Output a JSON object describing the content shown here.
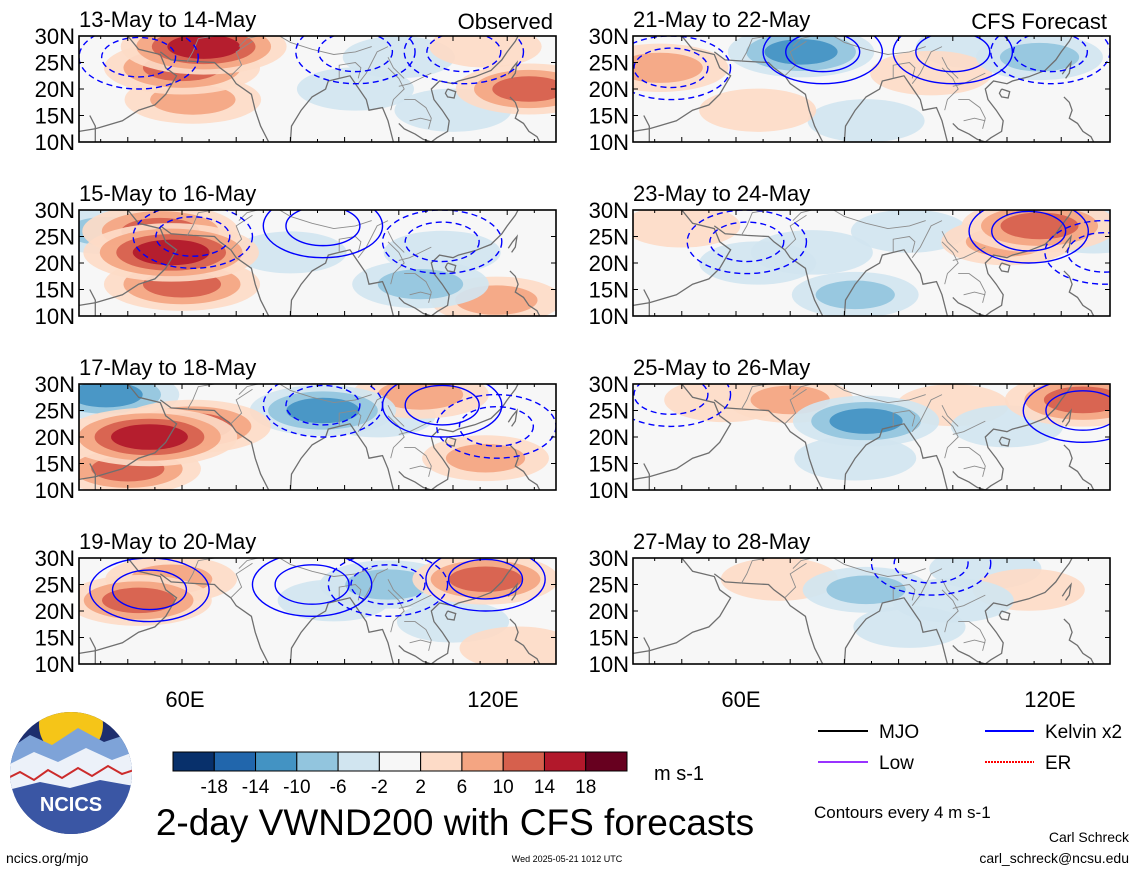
{
  "figure": {
    "title": "2-day VWND200 with CFS forecasts",
    "units": "m s-1",
    "contour_note": "Contours every 4 m s-1",
    "source": "ncics.org/mjo",
    "timestamp": "Wed 2025-05-21 1012 UTC",
    "author": "Carl Schreck",
    "email": "carl_schreck@ncsu.edu",
    "logo_text": "NCICS"
  },
  "colors": {
    "scale": [
      "#08306b",
      "#2166ac",
      "#4393c3",
      "#92c5de",
      "#d1e5f0",
      "#f7f7f7",
      "#fddbc7",
      "#f4a582",
      "#d6604d",
      "#b2182b",
      "#67001f"
    ],
    "land_outline": "#6f6f6f",
    "kelvin": "#0000ff"
  },
  "chart_data": {
    "type": "heatmap",
    "variable": "VWND200",
    "columns": [
      "Observed",
      "CFS Forecast"
    ],
    "lat_ticks": [
      "30N",
      "25N",
      "20N",
      "15N",
      "10N"
    ],
    "lon_ticks": [
      "60E",
      "120E"
    ],
    "lat_range": [
      10,
      30
    ],
    "colorbar": {
      "tick_labels": [
        "-18",
        "-14",
        "-10",
        "-6",
        "-2",
        "2",
        "6",
        "10",
        "14",
        "18"
      ],
      "bounds": [
        -18,
        -14,
        -10,
        -6,
        -2,
        2,
        6,
        10,
        14,
        18
      ],
      "units": "m s-1"
    },
    "legend": [
      {
        "label": "MJO",
        "color": "#000000",
        "style": "solid"
      },
      {
        "label": "Kelvin x2",
        "color": "#0000ff",
        "style": "solid"
      },
      {
        "label": "Low",
        "color": "#9933ff",
        "style": "solid"
      },
      {
        "label": "ER",
        "color": "#ff0000",
        "style": "dotted"
      }
    ],
    "panels": [
      {
        "period": "13-May to 14-May",
        "group": "Observed",
        "blobs": [
          {
            "lon": 60,
            "lat": 24,
            "v": 12
          },
          {
            "lon": 62,
            "lat": 18,
            "v": 8
          },
          {
            "lon": 64,
            "lat": 28,
            "v": 14
          },
          {
            "lon": 124,
            "lat": 20,
            "v": 10
          },
          {
            "lon": 92,
            "lat": 20,
            "v": -4
          },
          {
            "lon": 110,
            "lat": 16,
            "v": -4
          },
          {
            "lon": 100,
            "lat": 26,
            "v": -3
          },
          {
            "lon": 116,
            "lat": 28,
            "v": 3
          }
        ],
        "contours": [
          {
            "lon": 92,
            "lat": 27,
            "kind": "neg"
          },
          {
            "lon": 112,
            "lat": 27,
            "kind": "neg"
          },
          {
            "lon": 52,
            "lat": 26,
            "kind": "neg"
          }
        ]
      },
      {
        "period": "15-May to 16-May",
        "group": "Observed",
        "blobs": [
          {
            "lon": 58,
            "lat": 22,
            "v": 16
          },
          {
            "lon": 60,
            "lat": 16,
            "v": 12
          },
          {
            "lon": 56,
            "lat": 26,
            "v": 12
          },
          {
            "lon": 118,
            "lat": 13,
            "v": 7
          },
          {
            "lon": 104,
            "lat": 16,
            "v": -8
          },
          {
            "lon": 108,
            "lat": 22,
            "v": -4
          },
          {
            "lon": 80,
            "lat": 22,
            "v": -3
          },
          {
            "lon": 46,
            "lat": 26,
            "v": -6
          }
        ],
        "contours": [
          {
            "lon": 86,
            "lat": 27,
            "kind": "pos"
          },
          {
            "lon": 108,
            "lat": 24,
            "kind": "neg"
          },
          {
            "lon": 62,
            "lat": 25,
            "kind": "neg"
          }
        ]
      },
      {
        "period": "17-May to 18-May",
        "group": "Observed",
        "blobs": [
          {
            "lon": 54,
            "lat": 20,
            "v": 16
          },
          {
            "lon": 62,
            "lat": 22,
            "v": 12
          },
          {
            "lon": 50,
            "lat": 14,
            "v": 10
          },
          {
            "lon": 86,
            "lat": 25,
            "v": -10
          },
          {
            "lon": 104,
            "lat": 28,
            "v": 8
          },
          {
            "lon": 116,
            "lat": 16,
            "v": 6
          },
          {
            "lon": 96,
            "lat": 24,
            "v": -4
          },
          {
            "lon": 46,
            "lat": 28,
            "v": -10
          }
        ],
        "contours": [
          {
            "lon": 86,
            "lat": 26,
            "kind": "neg"
          },
          {
            "lon": 108,
            "lat": 26,
            "kind": "pos"
          },
          {
            "lon": 118,
            "lat": 22,
            "kind": "neg"
          }
        ]
      },
      {
        "period": "19-May to 20-May",
        "group": "Observed",
        "blobs": [
          {
            "lon": 52,
            "lat": 22,
            "v": 10
          },
          {
            "lon": 58,
            "lat": 26,
            "v": 7
          },
          {
            "lon": 116,
            "lat": 26,
            "v": 10
          },
          {
            "lon": 98,
            "lat": 25,
            "v": -8
          },
          {
            "lon": 88,
            "lat": 22,
            "v": -3
          },
          {
            "lon": 110,
            "lat": 18,
            "v": -3
          },
          {
            "lon": 122,
            "lat": 13,
            "v": 4
          }
        ],
        "contours": [
          {
            "lon": 54,
            "lat": 24,
            "kind": "pos"
          },
          {
            "lon": 98,
            "lat": 25,
            "kind": "neg"
          },
          {
            "lon": 116,
            "lat": 26,
            "kind": "pos"
          },
          {
            "lon": 84,
            "lat": 25,
            "kind": "pos"
          }
        ]
      },
      {
        "period": "21-May to 22-May",
        "group": "CFS Forecast",
        "blobs": [
          {
            "lon": 46,
            "lat": 24,
            "v": 8
          },
          {
            "lon": 72,
            "lat": 27,
            "v": -10
          },
          {
            "lon": 116,
            "lat": 26,
            "v": -6
          },
          {
            "lon": 96,
            "lat": 23,
            "v": 5
          },
          {
            "lon": 84,
            "lat": 14,
            "v": -4
          },
          {
            "lon": 64,
            "lat": 16,
            "v": 4
          },
          {
            "lon": 104,
            "lat": 28,
            "v": -4
          }
        ],
        "contours": [
          {
            "lon": 76,
            "lat": 27,
            "kind": "pos"
          },
          {
            "lon": 100,
            "lat": 27,
            "kind": "pos"
          },
          {
            "lon": 118,
            "lat": 27,
            "kind": "neg"
          },
          {
            "lon": 48,
            "lat": 24,
            "kind": "neg"
          }
        ]
      },
      {
        "period": "23-May to 24-May",
        "group": "CFS Forecast",
        "blobs": [
          {
            "lon": 116,
            "lat": 27,
            "v": 12
          },
          {
            "lon": 110,
            "lat": 24,
            "v": 7
          },
          {
            "lon": 74,
            "lat": 22,
            "v": -5
          },
          {
            "lon": 82,
            "lat": 14,
            "v": -6
          },
          {
            "lon": 64,
            "lat": 20,
            "v": -4
          },
          {
            "lon": 92,
            "lat": 26,
            "v": -4
          },
          {
            "lon": 50,
            "lat": 27,
            "v": 4
          },
          {
            "lon": 126,
            "lat": 26,
            "v": -5
          }
        ],
        "contours": [
          {
            "lon": 114,
            "lat": 26,
            "kind": "pos"
          },
          {
            "lon": 62,
            "lat": 24,
            "kind": "neg"
          },
          {
            "lon": 128,
            "lat": 22,
            "kind": "neg"
          }
        ]
      },
      {
        "period": "25-May to 26-May",
        "group": "CFS Forecast",
        "blobs": [
          {
            "lon": 84,
            "lat": 23,
            "v": -10
          },
          {
            "lon": 82,
            "lat": 16,
            "v": -5
          },
          {
            "lon": 124,
            "lat": 27,
            "v": 12
          },
          {
            "lon": 70,
            "lat": 27,
            "v": 6
          },
          {
            "lon": 58,
            "lat": 27,
            "v": 5
          },
          {
            "lon": 100,
            "lat": 26,
            "v": 3
          },
          {
            "lon": 110,
            "lat": 22,
            "v": -3
          }
        ],
        "contours": [
          {
            "lon": 124,
            "lat": 25,
            "kind": "pos"
          },
          {
            "lon": 48,
            "lat": 28,
            "kind": "neg"
          }
        ]
      },
      {
        "period": "27-May to 28-May",
        "group": "CFS Forecast",
        "blobs": [
          {
            "lon": 84,
            "lat": 24,
            "v": -6
          },
          {
            "lon": 100,
            "lat": 22,
            "v": -5
          },
          {
            "lon": 68,
            "lat": 26,
            "v": 4
          },
          {
            "lon": 106,
            "lat": 28,
            "v": -3
          },
          {
            "lon": 92,
            "lat": 17,
            "v": -3
          },
          {
            "lon": 114,
            "lat": 24,
            "v": 3
          }
        ],
        "contours": [
          {
            "lon": 96,
            "lat": 29,
            "kind": "neg"
          }
        ]
      }
    ]
  }
}
